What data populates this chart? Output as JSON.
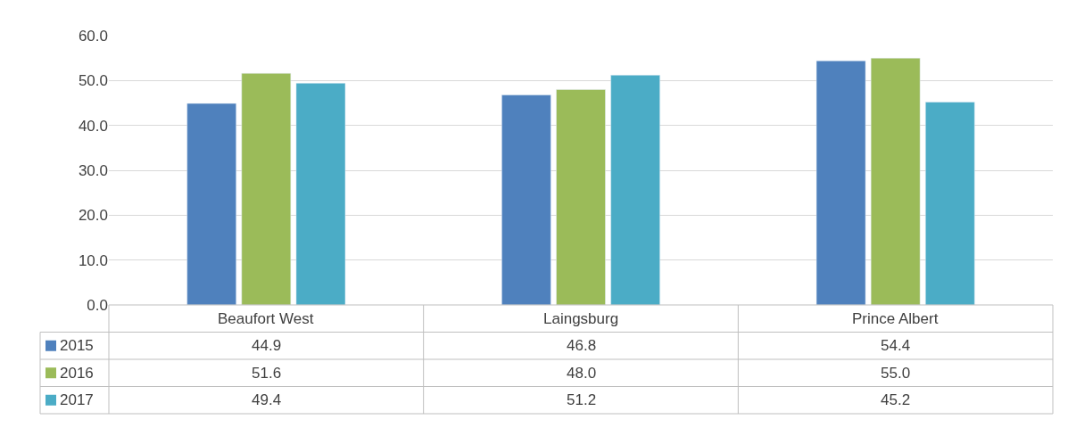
{
  "chart_data": {
    "type": "bar",
    "categories": [
      "Beaufort West",
      "Laingsburg",
      "Prince Albert"
    ],
    "series": [
      {
        "name": "2015",
        "color": "#4f81bd",
        "values": [
          44.9,
          46.8,
          54.4
        ],
        "value_labels": [
          "44.9",
          "46.8",
          "54.4"
        ]
      },
      {
        "name": "2016",
        "color": "#9bbb59",
        "values": [
          51.6,
          48.0,
          55.0
        ],
        "value_labels": [
          "51.6",
          "48.0",
          "55.0"
        ]
      },
      {
        "name": "2017",
        "color": "#4bacc6",
        "values": [
          49.4,
          51.2,
          45.2
        ],
        "value_labels": [
          "49.4",
          "51.2",
          "45.2"
        ]
      }
    ],
    "ylim": [
      0,
      60
    ],
    "yticks": [
      {
        "value": 0,
        "label": "0.0"
      },
      {
        "value": 10,
        "label": "10.0"
      },
      {
        "value": 20,
        "label": "20.0"
      },
      {
        "value": 30,
        "label": "30.0"
      },
      {
        "value": 40,
        "label": "40.0"
      },
      {
        "value": 50,
        "label": "50.0"
      },
      {
        "value": 60,
        "label": "60.0"
      }
    ],
    "grid": "y",
    "legend": "bottom"
  }
}
